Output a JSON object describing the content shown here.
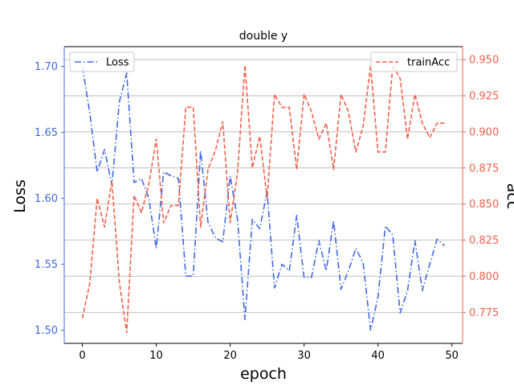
{
  "chart_data": {
    "type": "line",
    "title": "double y",
    "xlabel": "epoch",
    "ylabel_left": "Loss",
    "ylabel_right": "acc",
    "xlim": [
      -2.45,
      51.45
    ],
    "xticks": [
      0,
      10,
      20,
      30,
      40,
      50
    ],
    "left_axis": {
      "ylim": [
        1.49,
        1.715
      ],
      "ticks": [
        1.5,
        1.55,
        1.6,
        1.65,
        1.7
      ],
      "tick_labels": [
        "1.50",
        "1.55",
        "1.60",
        "1.65",
        "1.70"
      ],
      "color": "#4169e1"
    },
    "right_axis": {
      "ylim": [
        0.7535,
        0.959
      ],
      "ticks": [
        0.775,
        0.8,
        0.825,
        0.85,
        0.875,
        0.9,
        0.925,
        0.95
      ],
      "tick_labels": [
        "0.775",
        "0.800",
        "0.825",
        "0.850",
        "0.875",
        "0.900",
        "0.925",
        "0.950"
      ],
      "color": "#f4604a"
    },
    "grid": "horizontal lines at right-axis ticks",
    "x": [
      0,
      1,
      2,
      3,
      4,
      5,
      6,
      7,
      8,
      9,
      10,
      11,
      12,
      13,
      14,
      15,
      16,
      17,
      18,
      19,
      20,
      21,
      22,
      23,
      24,
      25,
      26,
      27,
      28,
      29,
      30,
      31,
      32,
      33,
      34,
      35,
      36,
      37,
      38,
      39,
      40,
      41,
      42,
      43,
      44,
      45,
      46,
      47,
      48,
      49
    ],
    "series": [
      {
        "name": "Loss",
        "axis": "left",
        "style": "dashdot",
        "color": "#4169e1",
        "values": [
          1.7,
          1.665,
          1.62,
          1.637,
          1.61,
          1.673,
          1.695,
          1.612,
          1.615,
          1.6,
          1.562,
          1.62,
          1.617,
          1.615,
          1.541,
          1.541,
          1.636,
          1.582,
          1.57,
          1.567,
          1.617,
          1.584,
          1.508,
          1.584,
          1.577,
          1.605,
          1.532,
          1.55,
          1.545,
          1.587,
          1.54,
          1.54,
          1.568,
          1.545,
          1.583,
          1.531,
          1.545,
          1.562,
          1.551,
          1.5,
          1.525,
          1.579,
          1.572,
          1.513,
          1.53,
          1.568,
          1.53,
          1.55,
          1.569,
          1.564
        ]
      },
      {
        "name": "trainAcc",
        "axis": "right",
        "style": "dashed",
        "color": "#f4604a",
        "values": [
          0.771,
          0.795,
          0.854,
          0.834,
          0.866,
          0.796,
          0.761,
          0.856,
          0.844,
          0.864,
          0.895,
          0.837,
          0.849,
          0.849,
          0.917,
          0.917,
          0.834,
          0.874,
          0.887,
          0.907,
          0.837,
          0.872,
          0.946,
          0.875,
          0.897,
          0.854,
          0.926,
          0.917,
          0.917,
          0.874,
          0.926,
          0.914,
          0.895,
          0.906,
          0.874,
          0.926,
          0.914,
          0.886,
          0.904,
          0.946,
          0.886,
          0.886,
          0.946,
          0.937,
          0.895,
          0.926,
          0.906,
          0.896,
          0.906,
          0.906
        ]
      }
    ],
    "legend_left": {
      "label": "Loss",
      "placement": "upper-left"
    },
    "legend_right": {
      "label": "trainAcc",
      "placement": "upper-right"
    }
  }
}
